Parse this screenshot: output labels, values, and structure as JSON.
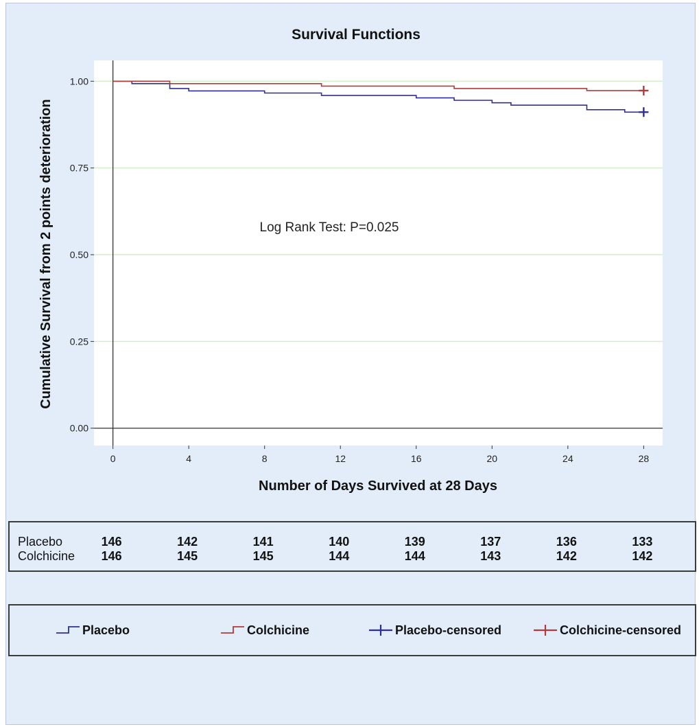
{
  "chart_data": {
    "type": "line",
    "title": "Survival Functions",
    "xlabel": "Number of Days Survived at 28 Days",
    "ylabel": "Cumulative Survival from 2 points deterioration",
    "xlim": [
      -1,
      29
    ],
    "ylim": [
      -0.05,
      1.06
    ],
    "xticks": [
      "0",
      "4",
      "8",
      "12",
      "16",
      "20",
      "24",
      "28"
    ],
    "yticks": [
      "0.00",
      "0.25",
      "0.50",
      "0.75",
      "1.00"
    ],
    "grid": true,
    "legend_position": "bottom",
    "annotation": "Log Rank Test: P=0.025",
    "series": [
      {
        "name": "Placebo",
        "color": "#2e2e96",
        "steps": [
          [
            0,
            1.0
          ],
          [
            1,
            0.993
          ],
          [
            3,
            0.979
          ],
          [
            4,
            0.972
          ],
          [
            8,
            0.966
          ],
          [
            11,
            0.959
          ],
          [
            16,
            0.952
          ],
          [
            18,
            0.945
          ],
          [
            20,
            0.938
          ],
          [
            21,
            0.931
          ],
          [
            25,
            0.918
          ],
          [
            27,
            0.911
          ]
        ],
        "end_x": 28,
        "censored": [
          [
            28,
            0.911
          ]
        ]
      },
      {
        "name": "Colchicine",
        "color": "#b23a3a",
        "steps": [
          [
            0,
            1.0
          ],
          [
            3,
            0.993
          ],
          [
            11,
            0.986
          ],
          [
            18,
            0.979
          ],
          [
            25,
            0.973
          ]
        ],
        "end_x": 28,
        "censored": [
          [
            28,
            0.973
          ]
        ]
      }
    ],
    "risk_table": {
      "times": [
        0,
        4,
        8,
        12,
        16,
        20,
        24,
        28
      ],
      "rows": [
        {
          "label": "Placebo",
          "values": [
            "146",
            "142",
            "141",
            "140",
            "139",
            "137",
            "136",
            "133"
          ]
        },
        {
          "label": "Colchicine",
          "values": [
            "146",
            "145",
            "145",
            "144",
            "144",
            "143",
            "142",
            "142"
          ]
        }
      ]
    },
    "legend": [
      {
        "label": "Placebo",
        "symbol": "step",
        "color": "#2e2e96"
      },
      {
        "label": "Colchicine",
        "symbol": "step",
        "color": "#b23a3a"
      },
      {
        "label": "Placebo-censored",
        "symbol": "plus",
        "color": "#2e2e96"
      },
      {
        "label": "Colchicine-censored",
        "symbol": "plus",
        "color": "#b23a3a"
      }
    ]
  }
}
